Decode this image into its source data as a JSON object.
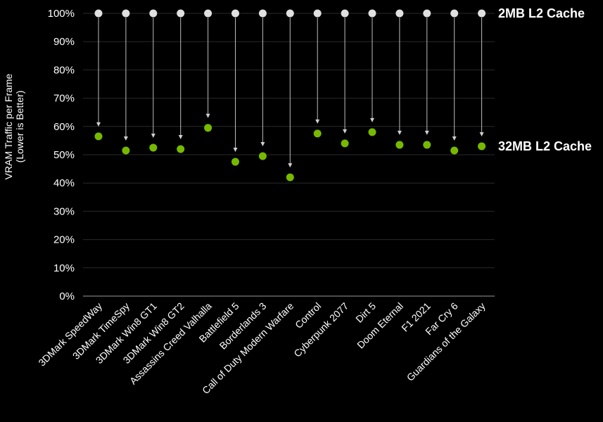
{
  "chart_data": {
    "type": "scatter",
    "title": "",
    "ylabel": [
      "VRAM Traffic per Frame",
      "(Lower is Better)"
    ],
    "ylim": [
      0,
      100
    ],
    "yticks": [
      "0%",
      "10%",
      "20%",
      "30%",
      "40%",
      "50%",
      "60%",
      "70%",
      "80%",
      "90%",
      "100%"
    ],
    "grid": true,
    "categories": [
      "3DMark SpeedWay",
      "3DMark TimeSpy",
      "3DMark Win8 GT1",
      "3DMark Win8 GT2",
      "Assassins Creed Valhalla",
      "Battlefield 5",
      "Borderlands 3",
      "Call of Duty Modern Warfare",
      "Control",
      "Cyberpunk 2077",
      "Dirt 5",
      "Doom Eternal",
      "F1 2021",
      "Far Cry 6",
      "Guardians of the Galaxy"
    ],
    "series": [
      {
        "name": "2MB L2 Cache",
        "color": "#e0e0e0",
        "values": [
          100,
          100,
          100,
          100,
          100,
          100,
          100,
          100,
          100,
          100,
          100,
          100,
          100,
          100,
          100
        ]
      },
      {
        "name": "32MB L2 Cache",
        "color": "#76b900",
        "values": [
          56.5,
          51.5,
          52.5,
          52,
          59.5,
          47.5,
          49.5,
          42,
          57.5,
          54,
          58,
          53.5,
          53.5,
          51.5,
          53
        ]
      }
    ]
  }
}
